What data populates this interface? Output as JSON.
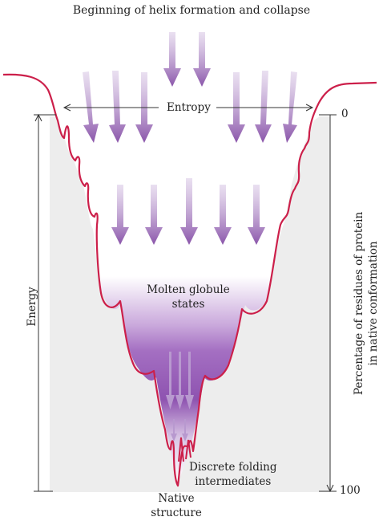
{
  "title": "Beginning of helix formation and collapse",
  "labels": {
    "entropy": "Entropy",
    "energy": "Energy",
    "molten_line1": "Molten globule",
    "molten_line2": "states",
    "discrete_line1": "Discrete folding",
    "discrete_line2": "intermediates",
    "native_line1": "Native",
    "native_line2": "structure",
    "percent_line1": "Percentage of residues of protein",
    "percent_line2": "in native conformation"
  },
  "percent_axis": {
    "top": "0",
    "bottom": "100"
  },
  "colors": {
    "funnel_line": "#cc1f4a",
    "arrow_purple": "#9b6bb5",
    "gradient_dark": "#7e3f9e",
    "background_gray": "#ededed"
  }
}
